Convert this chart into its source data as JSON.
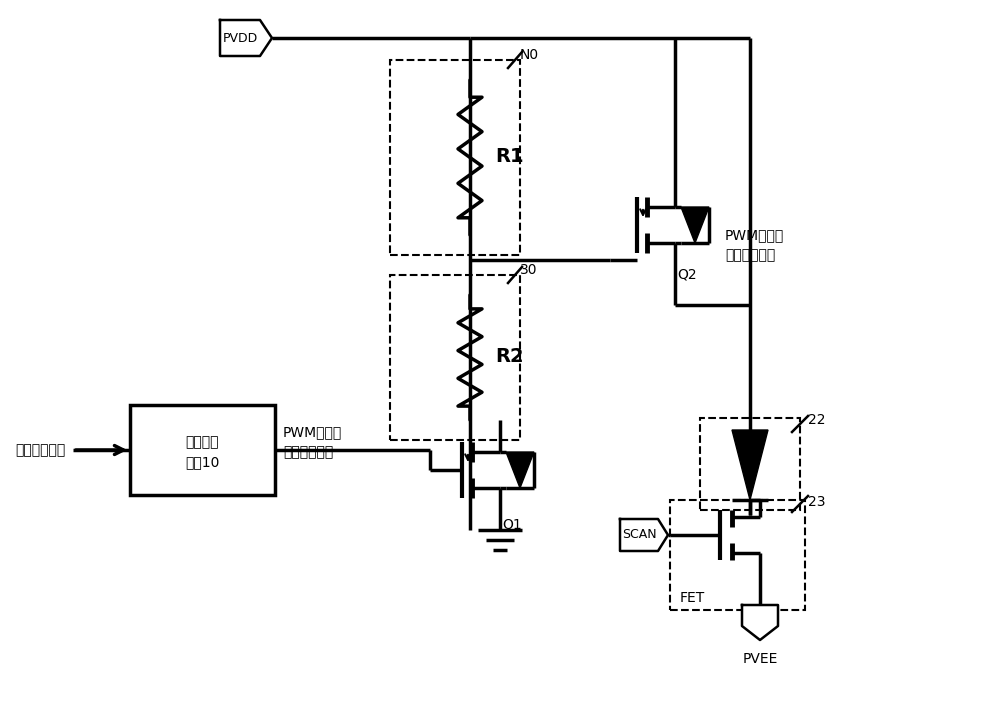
{
  "fig_width": 10.0,
  "fig_height": 7.09,
  "bg_color": "#ffffff",
  "lw": 1.8,
  "font_size": 10,
  "labels": {
    "pvdd": "PVDD",
    "pvee": "PVEE",
    "n0": "N0",
    "r1": "R1",
    "r2": "R2",
    "q1": "Q1",
    "q2": "Q2",
    "node30": "30",
    "scan": "SCAN",
    "fet": "FET",
    "label22": "22",
    "label23": "23",
    "module": "信号转换\n模块10",
    "target_signal": "目标显示信号",
    "pwm1_line1": "PWM形式的",
    "pwm1_line2": "第一显示信号",
    "pwm2_line1": "PWM形式的",
    "pwm2_line2": "第二显示信号"
  }
}
